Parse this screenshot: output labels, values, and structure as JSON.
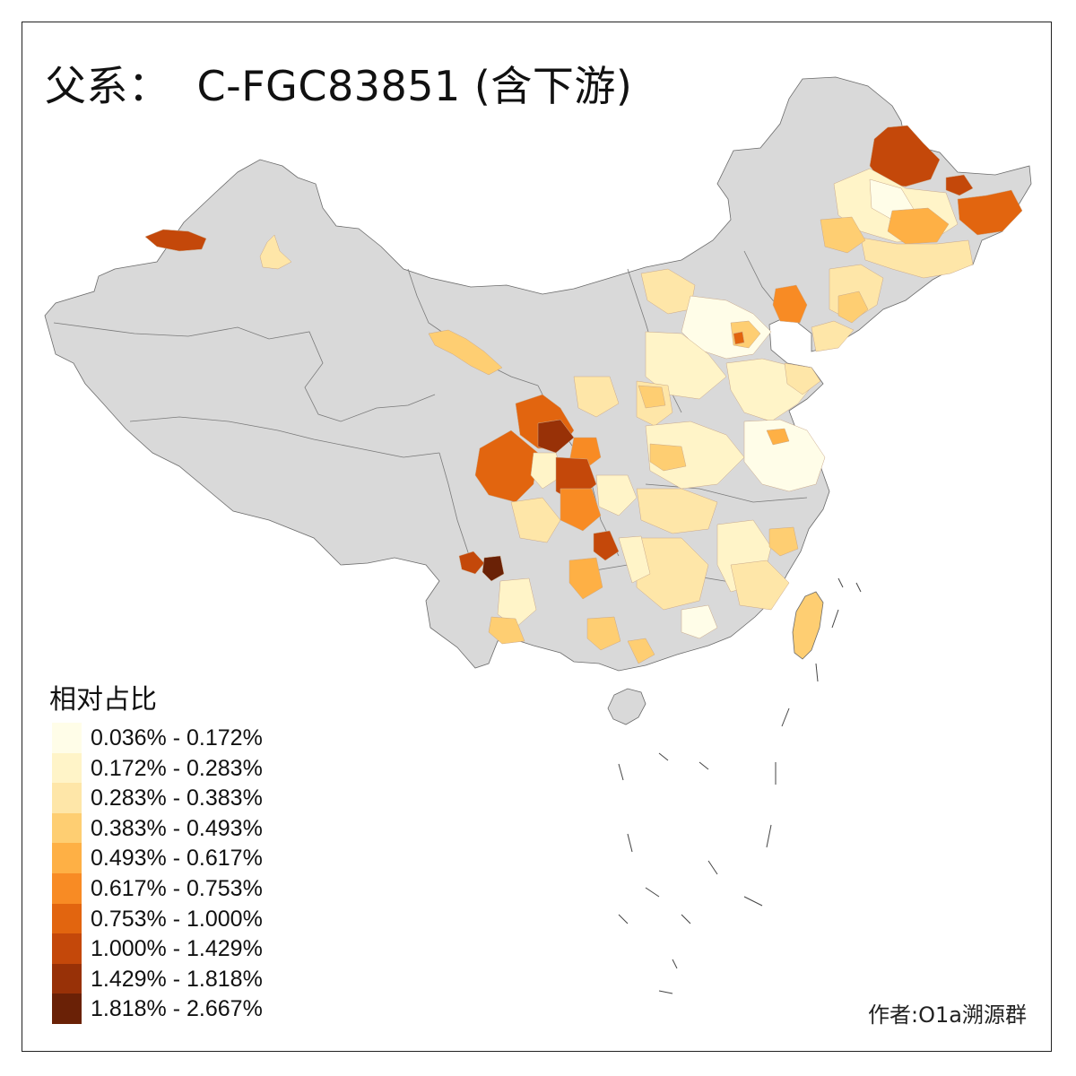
{
  "title": {
    "label": "父系：",
    "haplogroup": "C-FGC83851 (含下游)"
  },
  "legend": {
    "title": "相对占比",
    "bins": [
      {
        "range": "0.036% - 0.172%",
        "color": "#fffde8"
      },
      {
        "range": "0.172% - 0.283%",
        "color": "#fff4c8"
      },
      {
        "range": "0.283% - 0.383%",
        "color": "#fee6a8"
      },
      {
        "range": "0.383% - 0.493%",
        "color": "#fece72"
      },
      {
        "range": "0.493% - 0.617%",
        "color": "#feb045"
      },
      {
        "range": "0.617% - 0.753%",
        "color": "#f88b24"
      },
      {
        "range": "0.753% - 1.000%",
        "color": "#e2650f"
      },
      {
        "range": "1.000% - 1.429%",
        "color": "#c4480a"
      },
      {
        "range": "1.429% - 1.818%",
        "color": "#983107"
      },
      {
        "range": "1.818% - 2.667%",
        "color": "#6a2106"
      }
    ]
  },
  "no_data_color": "#d9d9d9",
  "credit": "作者:O1a溯源群"
}
